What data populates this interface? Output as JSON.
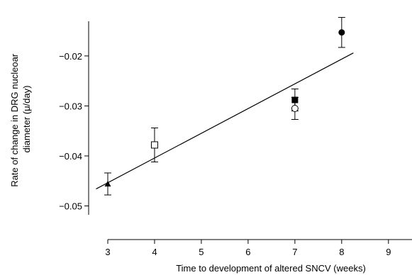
{
  "chart_data": {
    "type": "scatter",
    "xlabel": "Time to development of altered SNCV (weeks)",
    "ylabel": "Rate of change in DRG nucleoar diameter (μ/day)",
    "xlim": [
      2.5,
      9.2
    ],
    "ylim": [
      -0.058,
      -0.0125
    ],
    "x_ticks": [
      3,
      4,
      5,
      6,
      7,
      8,
      9
    ],
    "x_tick_labels": [
      "3",
      "4",
      "5",
      "6",
      "7",
      "8",
      "9"
    ],
    "y_ticks": [
      -0.02,
      -0.03,
      -0.04,
      -0.05
    ],
    "y_tick_labels": [
      "−0.02",
      "−0.03",
      "−0.04",
      "−0.05"
    ],
    "grid": false,
    "points": [
      {
        "x": 3,
        "y": -0.0456,
        "err": 0.0022,
        "marker": "filled-triangle"
      },
      {
        "x": 4,
        "y": -0.0378,
        "err": 0.0034,
        "marker": "open-square"
      },
      {
        "x": 7,
        "y": -0.0288,
        "err": 0.0022,
        "marker": "filled-square"
      },
      {
        "x": 7,
        "y": -0.0305,
        "err": 0.0022,
        "marker": "open-circle"
      },
      {
        "x": 8,
        "y": -0.0153,
        "err": 0.003,
        "marker": "filled-circle"
      }
    ],
    "fit_line": {
      "x": [
        2.75,
        8.25
      ],
      "y": [
        -0.0466,
        -0.0194
      ]
    }
  }
}
